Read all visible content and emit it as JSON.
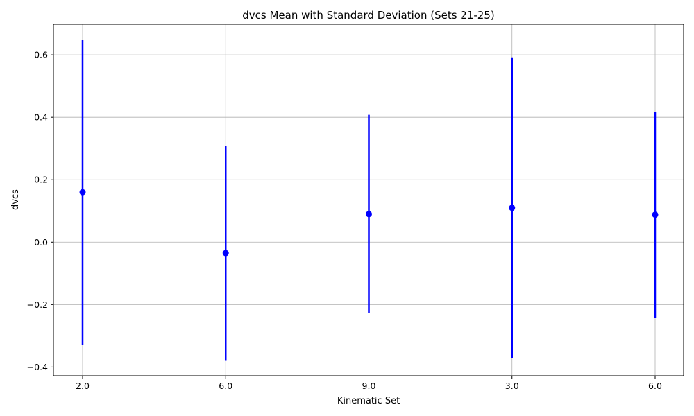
{
  "chart_data": {
    "type": "scatter",
    "subtype": "errorbar",
    "title": "dvcs Mean with Standard Deviation (Sets 21-25)",
    "xlabel": "Kinematic Set",
    "ylabel": "dvcs",
    "categories": [
      "2.0",
      "6.0",
      "9.0",
      "3.0",
      "6.0"
    ],
    "means": [
      0.16,
      -0.035,
      0.09,
      0.11,
      0.088
    ],
    "stds": [
      0.488,
      0.343,
      0.318,
      0.482,
      0.33
    ],
    "ylim": [
      -0.428,
      0.698
    ],
    "yticks": [
      -0.4,
      -0.2,
      0.0,
      0.2,
      0.4,
      0.6
    ],
    "ytick_labels": [
      "−0.4",
      "−0.2",
      "0.0",
      "0.2",
      "0.4",
      "0.6"
    ],
    "grid": true,
    "colors": {
      "series": "#0000ff",
      "grid": "#b0b0b0",
      "axes": "#000000"
    }
  }
}
